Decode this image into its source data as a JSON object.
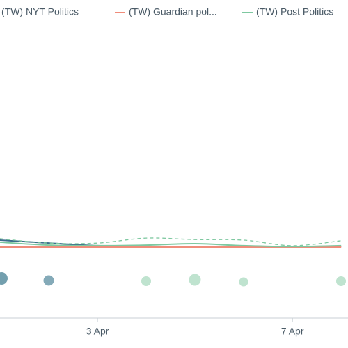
{
  "chart_data": {
    "type": "line",
    "x": [
      1,
      2,
      3,
      4,
      5,
      6,
      7,
      8
    ],
    "xlim": [
      1,
      8.14
    ],
    "xticks": [
      {
        "value": 3,
        "label": "3 Apr"
      },
      {
        "value": 7,
        "label": "7 Apr"
      }
    ],
    "ylim": [
      0,
      100
    ],
    "series": [
      {
        "name": "(TW) NYT Politics",
        "color": "#3d6e8c",
        "values": [
          26.5,
          25.5,
          24.6,
          24.3,
          24.3,
          24.3,
          24.3,
          24.3
        ]
      },
      {
        "name": "(TW) Guardian pol...",
        "color": "#f08c7a",
        "values": [
          24.1,
          24.1,
          24.1,
          24.1,
          24.1,
          24.1,
          24.1,
          24.1
        ]
      },
      {
        "name": "(TW) Post Politics",
        "color": "#7ec8a0",
        "values": [
          25.8,
          24.8,
          24.6,
          24.8,
          25.3,
          24.6,
          24.3,
          24.6
        ]
      },
      {
        "color": "#7ec8a0",
        "dashed": true,
        "values": [
          27.0,
          25.5,
          25.5,
          27.2,
          26.7,
          26.5,
          24.6,
          26.3
        ]
      }
    ]
  }
}
